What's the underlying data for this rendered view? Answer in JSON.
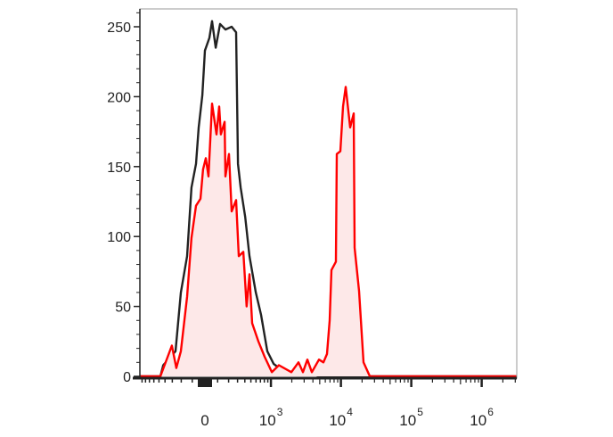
{
  "chart_data": {
    "type": "area",
    "title": "",
    "xlabel": "",
    "ylabel": "",
    "x_scale": "biexponential",
    "xlim": [
      -970,
      3100000
    ],
    "ylim": [
      0,
      262
    ],
    "grid": false,
    "y_ticks": [
      0,
      50,
      100,
      150,
      200,
      250
    ],
    "x_ticks": [
      {
        "value": 0,
        "base": "0",
        "exp": ""
      },
      {
        "value": 1000,
        "base": "10",
        "exp": "3"
      },
      {
        "value": 10000,
        "base": "10",
        "exp": "4"
      },
      {
        "value": 100000,
        "base": "10",
        "exp": "5"
      },
      {
        "value": 1000000,
        "base": "10",
        "exp": "6"
      }
    ],
    "series": [
      {
        "color": "#222222",
        "fill": "none",
        "points": [
          [
            -970,
            0
          ],
          [
            -475,
            0
          ],
          [
            -428,
            8
          ],
          [
            -261,
            18
          ],
          [
            -204,
            60
          ],
          [
            -144,
            86
          ],
          [
            -106,
            135
          ],
          [
            -69,
            152
          ],
          [
            -48,
            178
          ],
          [
            -20,
            201
          ],
          [
            0,
            233
          ],
          [
            34,
            242
          ],
          [
            55,
            254
          ],
          [
            84,
            235
          ],
          [
            121,
            252
          ],
          [
            169,
            248
          ],
          [
            232,
            250
          ],
          [
            282,
            246
          ],
          [
            305,
            152
          ],
          [
            340,
            135
          ],
          [
            405,
            114
          ],
          [
            475,
            86
          ],
          [
            595,
            60
          ],
          [
            716,
            44
          ],
          [
            885,
            18
          ],
          [
            1093,
            9
          ],
          [
            1470,
            4
          ],
          [
            1973,
            1
          ],
          [
            2644,
            2
          ],
          [
            4212,
            1
          ],
          [
            5000,
            0
          ],
          [
            3100000,
            0
          ]
        ]
      },
      {
        "color": "#ff0000",
        "fill": "#fde8e8",
        "points": [
          [
            -970,
            0
          ],
          [
            -475,
            0
          ],
          [
            -305,
            22
          ],
          [
            -252,
            6
          ],
          [
            -204,
            18
          ],
          [
            -144,
            57
          ],
          [
            -106,
            99
          ],
          [
            -69,
            122
          ],
          [
            -34,
            127
          ],
          [
            -14,
            148
          ],
          [
            7,
            156
          ],
          [
            27,
            143
          ],
          [
            55,
            195
          ],
          [
            91,
            173
          ],
          [
            113,
            193
          ],
          [
            128,
            173
          ],
          [
            161,
            182
          ],
          [
            169,
            143
          ],
          [
            204,
            159
          ],
          [
            232,
            118
          ],
          [
            282,
            126
          ],
          [
            316,
            86
          ],
          [
            377,
            89
          ],
          [
            428,
            50
          ],
          [
            475,
            73
          ],
          [
            524,
            38
          ],
          [
            653,
            25
          ],
          [
            807,
            14
          ],
          [
            1030,
            3
          ],
          [
            1303,
            8
          ],
          [
            1973,
            3
          ],
          [
            2492,
            10
          ],
          [
            2885,
            3
          ],
          [
            3339,
            12
          ],
          [
            3861,
            3
          ],
          [
            4881,
            12
          ],
          [
            5649,
            10
          ],
          [
            6341,
            16
          ],
          [
            6926,
            40
          ],
          [
            7348,
            76
          ],
          [
            8494,
            82
          ],
          [
            8752,
            159
          ],
          [
            9828,
            161
          ],
          [
            10717,
            193
          ],
          [
            11700,
            207
          ],
          [
            13549,
            178
          ],
          [
            15210,
            188
          ],
          [
            15678,
            92
          ],
          [
            18135,
            61
          ],
          [
            20966,
            10
          ],
          [
            25740,
            0
          ],
          [
            3100000,
            0
          ]
        ]
      }
    ]
  }
}
